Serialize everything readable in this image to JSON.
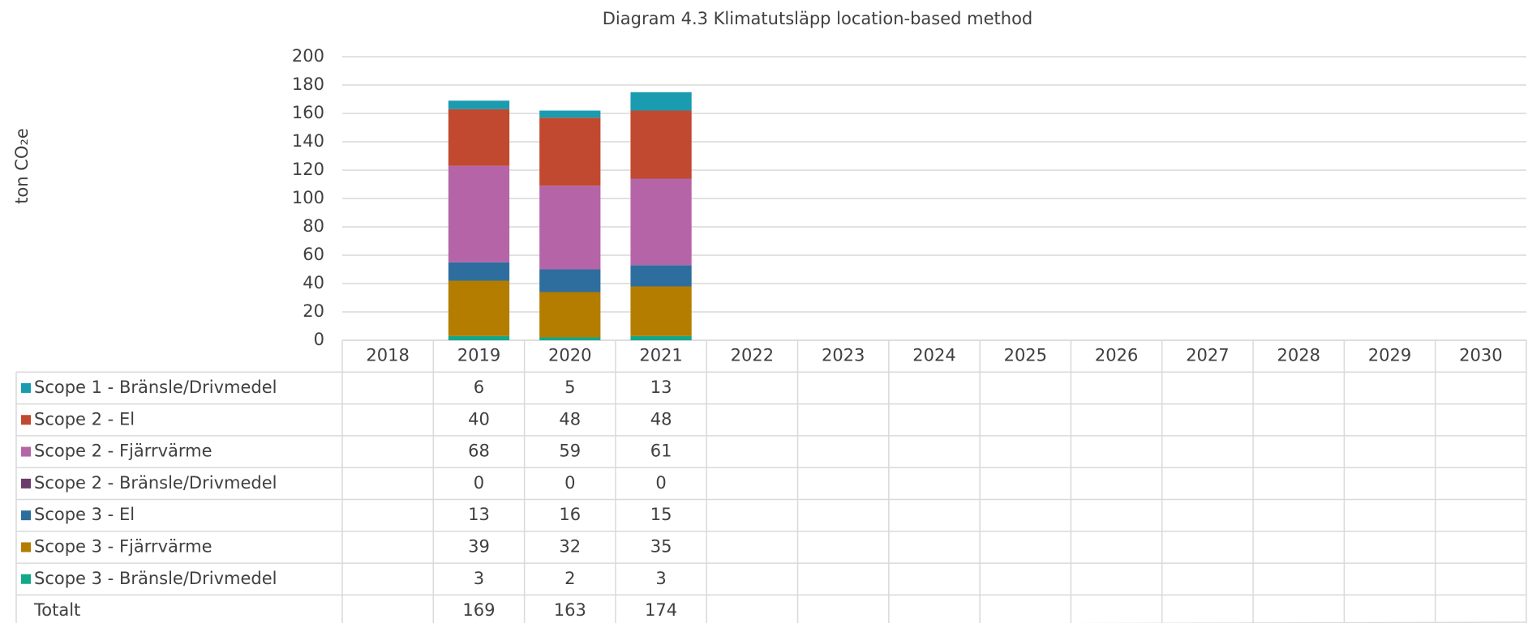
{
  "chart_data": {
    "type": "stacked_bar",
    "title": "Diagram 4.3 Klimatutsläpp location-based method",
    "y_label": "ton CO₂e",
    "categories": [
      "2018",
      "2019",
      "2020",
      "2021",
      "2022",
      "2023",
      "2024",
      "2025",
      "2026",
      "2027",
      "2028",
      "2029",
      "2030"
    ],
    "series": [
      {
        "name": "Scope 1 - Bränsle/Drivmedel",
        "color": "#1a9bb0",
        "values": [
          null,
          6,
          5,
          13,
          null,
          null,
          null,
          null,
          null,
          null,
          null,
          null,
          null
        ]
      },
      {
        "name": "Scope 2 - El",
        "color": "#c0492f",
        "values": [
          null,
          40,
          48,
          48,
          null,
          null,
          null,
          null,
          null,
          null,
          null,
          null,
          null
        ]
      },
      {
        "name": "Scope 2 - Fjärrvärme",
        "color": "#b565a7",
        "values": [
          null,
          68,
          59,
          61,
          null,
          null,
          null,
          null,
          null,
          null,
          null,
          null,
          null
        ]
      },
      {
        "name": "Scope 2 - Bränsle/Drivmedel",
        "color": "#6b3b6b",
        "values": [
          null,
          0,
          0,
          0,
          null,
          null,
          null,
          null,
          null,
          null,
          null,
          null,
          null
        ]
      },
      {
        "name": "Scope 3 - El",
        "color": "#2e6e9e",
        "values": [
          null,
          13,
          16,
          15,
          null,
          null,
          null,
          null,
          null,
          null,
          null,
          null,
          null
        ]
      },
      {
        "name": "Scope 3 - Fjärrvärme",
        "color": "#b47d00",
        "values": [
          null,
          39,
          32,
          35,
          null,
          null,
          null,
          null,
          null,
          null,
          null,
          null,
          null
        ]
      },
      {
        "name": "Scope 3 - Bränsle/Drivmedel",
        "color": "#12a88a",
        "values": [
          null,
          3,
          2,
          3,
          null,
          null,
          null,
          null,
          null,
          null,
          null,
          null,
          null
        ]
      }
    ],
    "table_total": {
      "name": "Totalt",
      "values": [
        null,
        169,
        163,
        174,
        null,
        null,
        null,
        null,
        null,
        null,
        null,
        null,
        null
      ]
    },
    "ylim": [
      0,
      200
    ],
    "yticks": [
      0,
      20,
      40,
      60,
      80,
      100,
      120,
      140,
      160,
      180,
      200
    ],
    "grid": true
  }
}
